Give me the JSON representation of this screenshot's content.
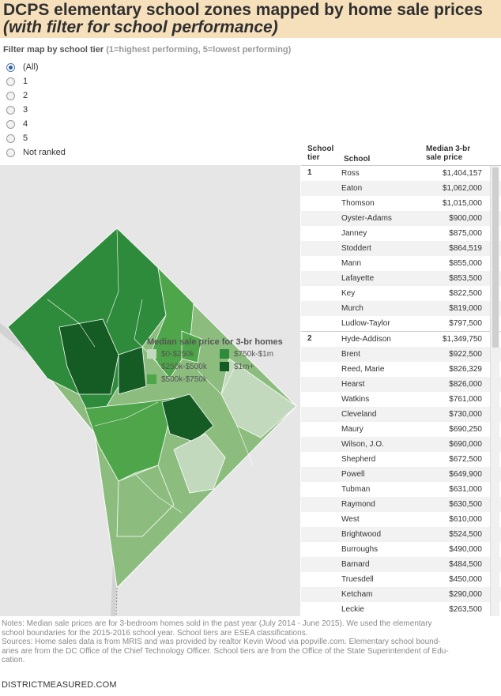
{
  "header": {
    "title": "DCPS elementary school zones mapped by home sale prices",
    "subtitle": "(with filter for school performance)"
  },
  "filter": {
    "title": "Filter map by school tier",
    "subtitle": "(1=highest performing, 5=lowest performing)",
    "options": [
      "(All)",
      "1",
      "2",
      "3",
      "4",
      "5",
      "Not ranked"
    ],
    "selected": "(All)"
  },
  "legend": {
    "title": "Median sale price for 3-br homes",
    "items": [
      {
        "label": "$0-$250k",
        "color": "#c3d9bd"
      },
      {
        "label": "$750k-$1m",
        "color": "#2e8b3b"
      },
      {
        "label": "$250k-$500k",
        "color": "#8cbd7f"
      },
      {
        "label": "$1m+",
        "color": "#145c24"
      },
      {
        "label": "$500k-$750k",
        "color": "#4fa54a"
      }
    ]
  },
  "table": {
    "col_tier": "School tier",
    "col_school": "School",
    "col_price": "Median 3-br sale price",
    "tiers": [
      {
        "tier": "1",
        "rows": [
          {
            "school": "Ross",
            "price": "$1,404,157"
          },
          {
            "school": "Eaton",
            "price": "$1,062,000"
          },
          {
            "school": "Thomson",
            "price": "$1,015,000"
          },
          {
            "school": "Oyster-Adams",
            "price": "$900,000"
          },
          {
            "school": "Janney",
            "price": "$875,000"
          },
          {
            "school": "Stoddert",
            "price": "$864,519"
          },
          {
            "school": "Mann",
            "price": "$855,000"
          },
          {
            "school": "Lafayette",
            "price": "$853,500"
          },
          {
            "school": "Key",
            "price": "$822,500"
          },
          {
            "school": "Murch",
            "price": "$819,000"
          },
          {
            "school": "Ludlow-Taylor",
            "price": "$797,500"
          }
        ]
      },
      {
        "tier": "2",
        "rows": [
          {
            "school": "Hyde-Addison",
            "price": "$1,349,750"
          },
          {
            "school": "Brent",
            "price": "$922,500"
          },
          {
            "school": "Reed, Marie",
            "price": "$826,329"
          },
          {
            "school": "Hearst",
            "price": "$826,000"
          },
          {
            "school": "Watkins",
            "price": "$761,000"
          },
          {
            "school": "Cleveland",
            "price": "$730,000"
          },
          {
            "school": "Maury",
            "price": "$690,250"
          },
          {
            "school": "Wilson, J.O.",
            "price": "$690,000"
          },
          {
            "school": "Shepherd",
            "price": "$672,500"
          },
          {
            "school": "Powell",
            "price": "$649,900"
          },
          {
            "school": "Tubman",
            "price": "$631,000"
          },
          {
            "school": "Raymond",
            "price": "$630,500"
          },
          {
            "school": "West",
            "price": "$610,000"
          },
          {
            "school": "Brightwood",
            "price": "$524,500"
          },
          {
            "school": "Burroughs",
            "price": "$490,000"
          },
          {
            "school": "Barnard",
            "price": "$484,500"
          },
          {
            "school": "Truesdell",
            "price": "$450,000"
          },
          {
            "school": "Ketcham",
            "price": "$290,000"
          },
          {
            "school": "Leckie",
            "price": "$263,500"
          }
        ]
      }
    ]
  },
  "notes": {
    "line1": "Notes: Median sale prices are for 3-bedroom homes sold in the past year (July 2014 - June 2015). We used the elementary",
    "line2": "school boundaries for the 2015-2016 school year. School tiers are ESEA classifications.",
    "line3": "Sources: Home sales data is from MRIS and was provided by realtor Kevin Wood via popville.com. Elementary school bound-",
    "line4": "aries are from the DC Office of the Chief Technology Officer. School tiers are from the Office of the State Superintendent of Edu-",
    "line5": "cation."
  },
  "footer": "DISTRICTMEASURED.COM"
}
